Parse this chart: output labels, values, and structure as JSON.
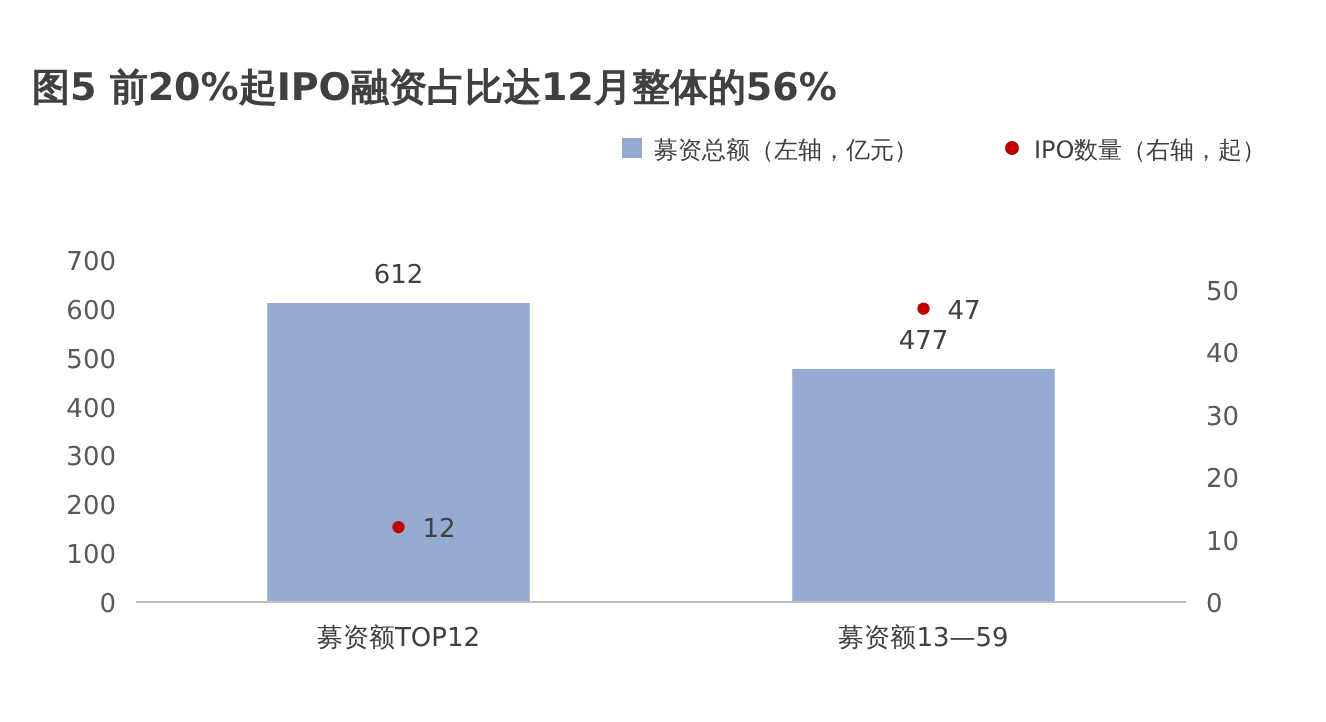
{
  "chart_data": {
    "type": "bar",
    "title": "图5 前20%起IPO融资占比达12月整体的56%",
    "categories": [
      "募资额TOP12",
      "募资额13—59"
    ],
    "series": [
      {
        "name": "募资总额（左轴，亿元）",
        "color": "#95abd1",
        "values": [
          612,
          477
        ]
      },
      {
        "name": "IPO数量（右轴，起）",
        "type": "scatter",
        "axis": "y2",
        "color": "#c00000",
        "values": [
          12,
          47
        ]
      }
    ],
    "ylim": [
      0,
      700
    ],
    "yticks": [
      0,
      100,
      200,
      300,
      400,
      500,
      600,
      700
    ],
    "y2lim": [
      0,
      50
    ],
    "y2ticks": [
      0,
      10,
      20,
      30,
      40,
      50
    ],
    "data_labels": true,
    "legend": "top right",
    "grid": false,
    "marker": "circle"
  }
}
